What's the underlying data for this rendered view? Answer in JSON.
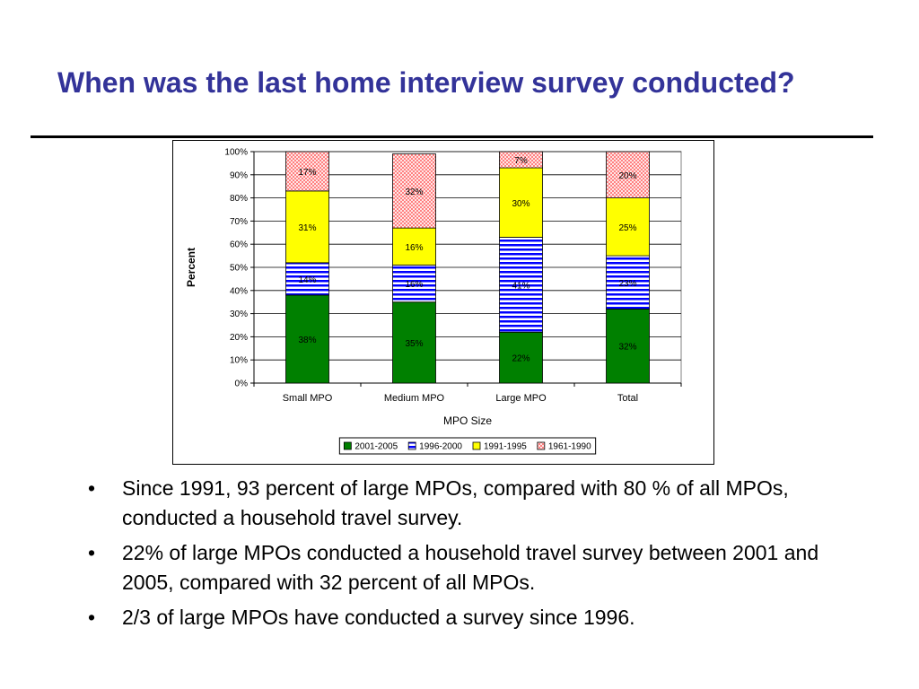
{
  "slide": {
    "title": "When was the last home interview survey conducted?",
    "bullet_symbol": "•",
    "bullets": [
      "Since 1991, 93 percent of large MPOs, compared with 80 % of all MPOs, conducted a household travel survey.",
      "22% of large MPOs conducted a household travel survey between 2001 and 2005, compared with 32 percent of all MPOs.",
      "2/3 of large MPOs have conducted a survey since 1996."
    ]
  },
  "chart_data": {
    "type": "bar",
    "stacked": true,
    "percent_stacked": true,
    "title": "",
    "xlabel": "MPO Size",
    "ylabel": "Percent",
    "ylim": [
      0,
      100
    ],
    "yticks": [
      "0%",
      "10%",
      "20%",
      "30%",
      "40%",
      "50%",
      "60%",
      "70%",
      "80%",
      "90%",
      "100%"
    ],
    "categories": [
      "Small MPO",
      "Medium MPO",
      "Large MPO",
      "Total"
    ],
    "grid": true,
    "legend_position": "bottom",
    "series": [
      {
        "name": "2001-2005",
        "values": [
          38,
          35,
          22,
          32
        ],
        "labels": [
          "38%",
          "35%",
          "22%",
          "32%"
        ],
        "color": "#008000",
        "pattern": "solid"
      },
      {
        "name": "1996-2000",
        "values": [
          14,
          16,
          41,
          23
        ],
        "labels": [
          "14%",
          "16%",
          "41%",
          "23%"
        ],
        "color": "#0000ff",
        "pattern": "horizontal-stripes"
      },
      {
        "name": "1991-1995",
        "values": [
          31,
          16,
          30,
          25
        ],
        "labels": [
          "31%",
          "16%",
          "30%",
          "25%"
        ],
        "color": "#ffff00",
        "pattern": "solid"
      },
      {
        "name": "1961-1990",
        "values": [
          17,
          32,
          7,
          20
        ],
        "labels": [
          "17%",
          "32%",
          "7%",
          "20%"
        ],
        "color": "#ff0000",
        "pattern": "crosshatch"
      }
    ]
  }
}
